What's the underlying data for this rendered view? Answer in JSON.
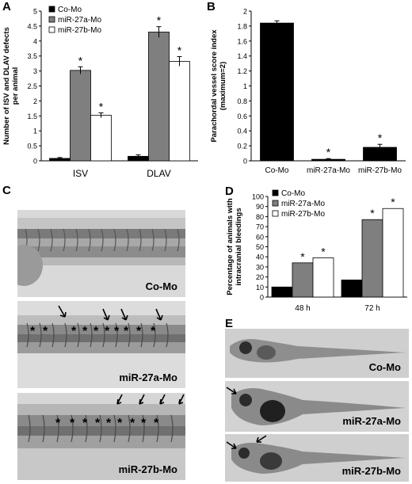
{
  "panels": {
    "A": "A",
    "B": "B",
    "C": "C",
    "D": "D",
    "E": "E"
  },
  "chart_data": [
    {
      "panel": "A",
      "type": "bar",
      "categories": [
        "ISV",
        "DLAV"
      ],
      "series": [
        {
          "name": "Co-Mo",
          "values": [
            0.08,
            0.15
          ],
          "errors": [
            0.03,
            0.05
          ],
          "color": "#000000",
          "star": [
            false,
            false
          ]
        },
        {
          "name": "miR-27a-Mo",
          "values": [
            3.02,
            4.3
          ],
          "errors": [
            0.12,
            0.18
          ],
          "color": "#7f7f7f",
          "star": [
            true,
            true
          ]
        },
        {
          "name": "miR-27b-Mo",
          "values": [
            1.52,
            3.32
          ],
          "errors": [
            0.08,
            0.16
          ],
          "color": "#ffffff",
          "star": [
            true,
            true
          ]
        }
      ],
      "ylabel": "Number of ISV and DLAV defects per animal",
      "ylim": [
        0,
        5
      ],
      "yticks": [
        "0",
        "0.5",
        "1",
        "1.5",
        "2",
        "2.5",
        "3",
        "3.5",
        "4",
        "4.5",
        "5"
      ],
      "star_symbol": "*",
      "legend": "top-left",
      "grid": false
    },
    {
      "panel": "B",
      "type": "bar",
      "categories": [
        "Co-Mo",
        "miR-27a-Mo",
        "miR-27b-Mo"
      ],
      "values": [
        1.84,
        0.02,
        0.18
      ],
      "errors": [
        0.03,
        0.01,
        0.04
      ],
      "star": [
        false,
        true,
        true
      ],
      "color": "#000000",
      "ylabel": "Parachordal vessel score index (maximum=2)",
      "ylim": [
        0,
        2
      ],
      "yticks": [
        "0",
        "0.2",
        "0.4",
        "0.6",
        "0.8",
        "1",
        "1.2",
        "1.4",
        "1.6",
        "1.8",
        "2"
      ],
      "star_symbol": "*",
      "grid": false
    },
    {
      "panel": "D",
      "type": "bar",
      "categories": [
        "48 h",
        "72 h"
      ],
      "series": [
        {
          "name": "Co-Mo",
          "values": [
            10,
            17
          ],
          "color": "#000000",
          "star": [
            false,
            false
          ]
        },
        {
          "name": "miR-27a-Mo",
          "values": [
            34,
            77
          ],
          "color": "#7f7f7f",
          "star": [
            true,
            true
          ]
        },
        {
          "name": "miR-27b-Mo",
          "values": [
            39,
            88
          ],
          "color": "#ffffff",
          "star": [
            true,
            true
          ]
        }
      ],
      "ylabel": "Percentage of animals with intracranial bleedings",
      "ylim": [
        0,
        100
      ],
      "yticks": [
        "0",
        "10",
        "20",
        "30",
        "40",
        "50",
        "60",
        "70",
        "80",
        "90",
        "100"
      ],
      "star_symbol": "*",
      "legend": "top-left",
      "grid": false
    }
  ],
  "micrographs_c": [
    {
      "label": "Co-Mo",
      "asterisks": []
    },
    {
      "label": "miR-27a-Mo",
      "asterisks": [
        "*",
        "*",
        "*",
        "*",
        "*",
        "*",
        "*",
        "*",
        "*",
        "*"
      ]
    },
    {
      "label": "miR-27b-Mo",
      "asterisks": [
        "*",
        "*",
        "*",
        "*",
        "*",
        "*",
        "*",
        "*",
        "*"
      ]
    }
  ],
  "micrographs_e": [
    {
      "label": "Co-Mo"
    },
    {
      "label": "miR-27a-Mo"
    },
    {
      "label": "miR-27b-Mo"
    }
  ]
}
